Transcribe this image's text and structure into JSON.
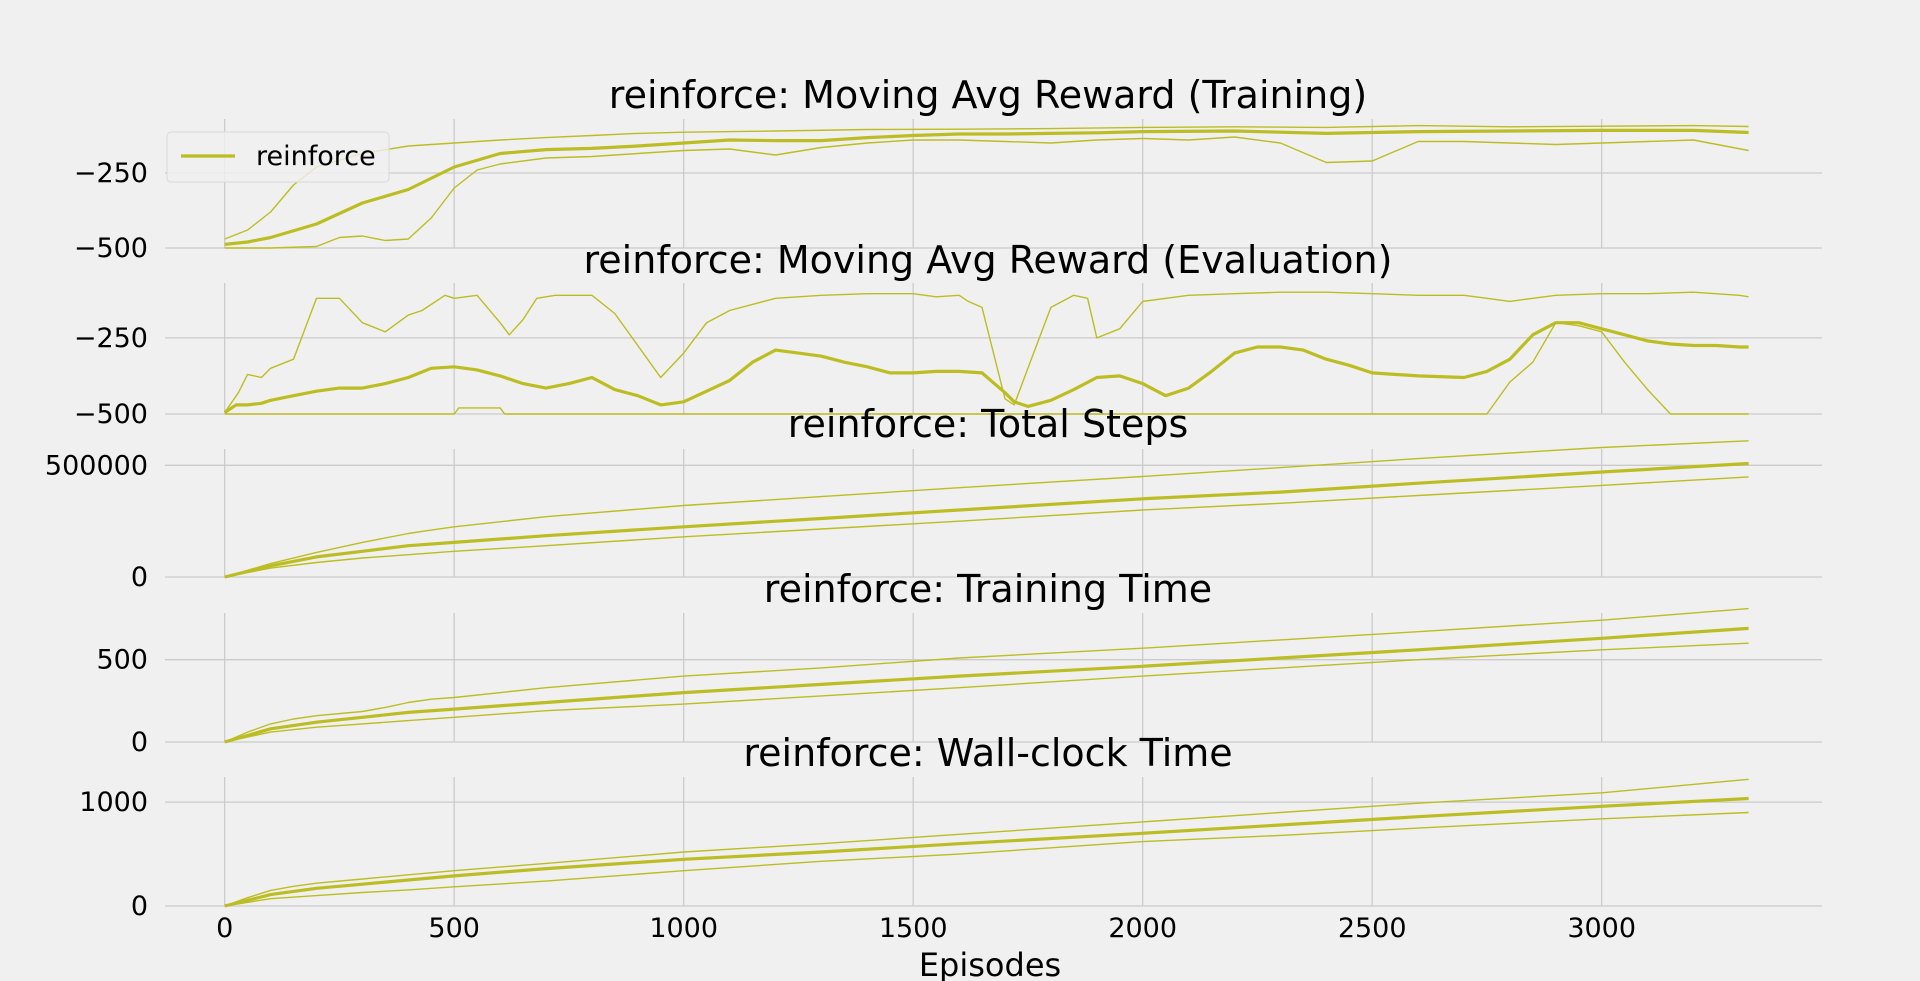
{
  "figure": {
    "xlabel": "Episodes",
    "color": "#bcbd22",
    "background": "#f0f0f0",
    "grid_color": "#cbcbcb"
  },
  "chart_data": [
    {
      "type": "line",
      "title": "reinforce: Moving Avg Reward (Training)",
      "xlim": [
        -130,
        3480
      ],
      "ylim": [
        -500,
        -50
      ],
      "yticks": [
        -250,
        -500
      ],
      "ytick_labels": [
        "−250",
        "−500"
      ],
      "xticks": [
        0,
        500,
        1000,
        1500,
        2000,
        2500,
        3000
      ],
      "grid": true,
      "legend": {
        "placement": "top-left",
        "entries": [
          "reinforce"
        ]
      },
      "series": [
        {
          "name": "reinforce",
          "role": "mean",
          "x": [
            0,
            50,
            100,
            200,
            300,
            400,
            500,
            600,
            700,
            800,
            900,
            1000,
            1100,
            1200,
            1300,
            1400,
            1500,
            1600,
            1700,
            1800,
            1900,
            2000,
            2200,
            2400,
            2600,
            2800,
            3000,
            3200,
            3320
          ],
          "y": [
            -488,
            -480,
            -465,
            -420,
            -350,
            -305,
            -230,
            -185,
            -172,
            -168,
            -160,
            -150,
            -140,
            -142,
            -142,
            -132,
            -125,
            -120,
            -120,
            -118,
            -116,
            -112,
            -110,
            -118,
            -112,
            -110,
            -108,
            -108,
            -115
          ]
        },
        {
          "role": "upper",
          "x": [
            0,
            50,
            100,
            150,
            200,
            300,
            400,
            500,
            600,
            700,
            800,
            900,
            1000,
            1200,
            1400,
            1600,
            1800,
            2000,
            2200,
            2400,
            2600,
            2800,
            3000,
            3200,
            3320
          ],
          "y": [
            -470,
            -440,
            -380,
            -290,
            -230,
            -185,
            -160,
            -150,
            -140,
            -132,
            -125,
            -118,
            -114,
            -110,
            -105,
            -104,
            -102,
            -98,
            -96,
            -98,
            -92,
            -96,
            -94,
            -92,
            -95
          ]
        },
        {
          "role": "lower",
          "x": [
            0,
            100,
            200,
            250,
            300,
            350,
            400,
            450,
            500,
            550,
            600,
            700,
            800,
            900,
            1000,
            1100,
            1200,
            1300,
            1400,
            1500,
            1600,
            1700,
            1800,
            1900,
            2000,
            2100,
            2200,
            2300,
            2400,
            2500,
            2600,
            2700,
            2800,
            2900,
            3000,
            3100,
            3200,
            3320
          ],
          "y": [
            -500,
            -500,
            -495,
            -465,
            -460,
            -475,
            -470,
            -400,
            -300,
            -240,
            -220,
            -200,
            -195,
            -185,
            -175,
            -170,
            -190,
            -165,
            -150,
            -140,
            -140,
            -145,
            -150,
            -140,
            -135,
            -140,
            -130,
            -150,
            -215,
            -210,
            -145,
            -145,
            -150,
            -155,
            -150,
            -145,
            -140,
            -175
          ]
        }
      ]
    },
    {
      "type": "line",
      "title": "reinforce: Moving Avg Reward (Evaluation)",
      "xlim": [
        -130,
        3480
      ],
      "ylim": [
        -500,
        -50
      ],
      "yticks": [
        -250,
        -500
      ],
      "ytick_labels": [
        "−250",
        "−500"
      ],
      "xticks": [
        0,
        500,
        1000,
        1500,
        2000,
        2500,
        3000
      ],
      "grid": true,
      "series": [
        {
          "role": "mean",
          "x": [
            0,
            25,
            50,
            80,
            100,
            150,
            200,
            250,
            300,
            350,
            400,
            450,
            500,
            550,
            600,
            650,
            700,
            750,
            800,
            850,
            900,
            950,
            1000,
            1050,
            1100,
            1150,
            1200,
            1250,
            1300,
            1350,
            1400,
            1450,
            1500,
            1550,
            1600,
            1650,
            1700,
            1720,
            1750,
            1800,
            1850,
            1900,
            1950,
            2000,
            2050,
            2100,
            2150,
            2200,
            2250,
            2300,
            2350,
            2400,
            2450,
            2500,
            2600,
            2700,
            2750,
            2800,
            2850,
            2900,
            2950,
            3000,
            3050,
            3100,
            3150,
            3200,
            3250,
            3300,
            3320
          ],
          "y": [
            -495,
            -470,
            -470,
            -465,
            -455,
            -440,
            -425,
            -415,
            -415,
            -400,
            -380,
            -350,
            -345,
            -355,
            -375,
            -400,
            -415,
            -400,
            -380,
            -420,
            -440,
            -470,
            -460,
            -425,
            -390,
            -330,
            -290,
            -300,
            -310,
            -330,
            -345,
            -365,
            -365,
            -360,
            -360,
            -365,
            -430,
            -460,
            -475,
            -455,
            -420,
            -380,
            -375,
            -400,
            -440,
            -415,
            -360,
            -300,
            -280,
            -280,
            -290,
            -320,
            -340,
            -365,
            -375,
            -380,
            -360,
            -320,
            -240,
            -200,
            -200,
            -220,
            -240,
            -260,
            -270,
            -275,
            -275,
            -280,
            -280
          ]
        },
        {
          "role": "upper",
          "x": [
            0,
            30,
            50,
            80,
            100,
            150,
            200,
            250,
            300,
            350,
            400,
            430,
            480,
            500,
            550,
            600,
            620,
            650,
            680,
            720,
            800,
            850,
            950,
            1000,
            1050,
            1100,
            1200,
            1300,
            1400,
            1500,
            1550,
            1600,
            1620,
            1650,
            1700,
            1720,
            1750,
            1800,
            1850,
            1880,
            1900,
            1950,
            2000,
            2100,
            2200,
            2300,
            2400,
            2500,
            2600,
            2700,
            2750,
            2800,
            2850,
            2900,
            3000,
            3100,
            3200,
            3300,
            3320
          ],
          "y": [
            -495,
            -430,
            -370,
            -380,
            -350,
            -320,
            -120,
            -120,
            -200,
            -230,
            -175,
            -160,
            -110,
            -120,
            -110,
            -200,
            -240,
            -190,
            -120,
            -110,
            -110,
            -170,
            -380,
            -300,
            -200,
            -160,
            -120,
            -110,
            -105,
            -105,
            -115,
            -110,
            -130,
            -150,
            -450,
            -470,
            -350,
            -150,
            -110,
            -120,
            -250,
            -220,
            -130,
            -110,
            -105,
            -100,
            -100,
            -105,
            -110,
            -110,
            -120,
            -130,
            -120,
            -110,
            -105,
            -105,
            -100,
            -110,
            -115
          ]
        },
        {
          "role": "lower",
          "x": [
            0,
            500,
            510,
            600,
            610,
            640,
            700,
            2750,
            2800,
            2850,
            2900,
            2950,
            3000,
            3050,
            3100,
            3150,
            3200,
            3320
          ],
          "y": [
            -500,
            -500,
            -480,
            -480,
            -500,
            -500,
            -500,
            -500,
            -395,
            -330,
            -200,
            -210,
            -230,
            -330,
            -420,
            -500,
            -500,
            -500
          ]
        }
      ]
    },
    {
      "type": "line",
      "title": "reinforce: Total Steps",
      "xlim": [
        -130,
        3480
      ],
      "ylim": [
        0,
        600000
      ],
      "yticks": [
        0,
        500000
      ],
      "ytick_labels": [
        "0",
        "500000"
      ],
      "xticks": [
        0,
        500,
        1000,
        1500,
        2000,
        2500,
        3000
      ],
      "grid": true,
      "series": [
        {
          "role": "mean",
          "x": [
            0,
            100,
            200,
            300,
            400,
            500,
            700,
            1000,
            1300,
            1600,
            2000,
            2300,
            2600,
            3000,
            3320
          ],
          "y": [
            0,
            50000,
            90000,
            115000,
            140000,
            155000,
            185000,
            225000,
            262000,
            300000,
            350000,
            380000,
            420000,
            470000,
            508000
          ]
        },
        {
          "role": "upper",
          "x": [
            0,
            100,
            200,
            300,
            400,
            450,
            500,
            700,
            1000,
            1300,
            1600,
            2000,
            2300,
            2600,
            3000,
            3320
          ],
          "y": [
            0,
            60000,
            110000,
            155000,
            195000,
            210000,
            225000,
            270000,
            320000,
            360000,
            400000,
            450000,
            490000,
            530000,
            580000,
            610000
          ]
        },
        {
          "role": "lower",
          "x": [
            0,
            100,
            200,
            300,
            400,
            500,
            700,
            1000,
            1300,
            1600,
            2000,
            2300,
            2600,
            3000,
            3320
          ],
          "y": [
            0,
            40000,
            65000,
            85000,
            100000,
            115000,
            140000,
            180000,
            215000,
            250000,
            300000,
            330000,
            365000,
            410000,
            448000
          ]
        }
      ]
    },
    {
      "type": "line",
      "title": "reinforce: Training Time",
      "xlim": [
        -130,
        3480
      ],
      "ylim": [
        0,
        820
      ],
      "yticks": [
        0,
        500
      ],
      "ytick_labels": [
        "0",
        "500"
      ],
      "xticks": [
        0,
        500,
        1000,
        1500,
        2000,
        2500,
        3000
      ],
      "grid": true,
      "series": [
        {
          "role": "mean",
          "x": [
            0,
            100,
            200,
            300,
            400,
            500,
            700,
            1000,
            1300,
            1600,
            2000,
            2300,
            2600,
            3000,
            3320
          ],
          "y": [
            0,
            80,
            120,
            150,
            180,
            200,
            240,
            300,
            350,
            400,
            460,
            510,
            560,
            630,
            690
          ]
        },
        {
          "role": "upper",
          "x": [
            0,
            50,
            100,
            150,
            200,
            300,
            350,
            400,
            450,
            500,
            700,
            1000,
            1300,
            1600,
            2000,
            2300,
            2600,
            3000,
            3320
          ],
          "y": [
            0,
            60,
            110,
            140,
            160,
            185,
            210,
            240,
            260,
            270,
            330,
            400,
            450,
            510,
            570,
            620,
            670,
            740,
            810
          ]
        },
        {
          "role": "lower",
          "x": [
            0,
            100,
            200,
            300,
            400,
            500,
            700,
            1000,
            1300,
            1600,
            2000,
            2300,
            2600,
            3000,
            3320
          ],
          "y": [
            0,
            60,
            90,
            110,
            130,
            150,
            190,
            230,
            280,
            330,
            400,
            450,
            500,
            560,
            600
          ]
        }
      ]
    },
    {
      "type": "line",
      "title": "reinforce: Wall-clock Time",
      "xlim": [
        -130,
        3480
      ],
      "ylim": [
        0,
        1300
      ],
      "yticks": [
        0,
        1000
      ],
      "ytick_labels": [
        "0",
        "1000"
      ],
      "xticks": [
        0,
        500,
        1000,
        1500,
        2000,
        2500,
        3000
      ],
      "grid": true,
      "series": [
        {
          "role": "mean",
          "x": [
            0,
            100,
            200,
            300,
            400,
            500,
            700,
            1000,
            1300,
            1600,
            2000,
            2300,
            2600,
            3000,
            3320
          ],
          "y": [
            0,
            110,
            170,
            210,
            250,
            290,
            360,
            450,
            520,
            600,
            700,
            780,
            860,
            960,
            1035
          ]
        },
        {
          "role": "upper",
          "x": [
            0,
            50,
            100,
            150,
            200,
            300,
            400,
            500,
            700,
            1000,
            1300,
            1600,
            2000,
            2300,
            2600,
            3000,
            3320
          ],
          "y": [
            0,
            80,
            150,
            190,
            220,
            260,
            300,
            340,
            410,
            520,
            600,
            690,
            810,
            900,
            990,
            1090,
            1220
          ]
        },
        {
          "role": "lower",
          "x": [
            0,
            100,
            200,
            300,
            400,
            500,
            700,
            1000,
            1300,
            1600,
            2000,
            2300,
            2600,
            3000,
            3320
          ],
          "y": [
            0,
            70,
            100,
            130,
            155,
            185,
            240,
            340,
            430,
            500,
            620,
            680,
            750,
            840,
            900
          ]
        }
      ]
    }
  ]
}
